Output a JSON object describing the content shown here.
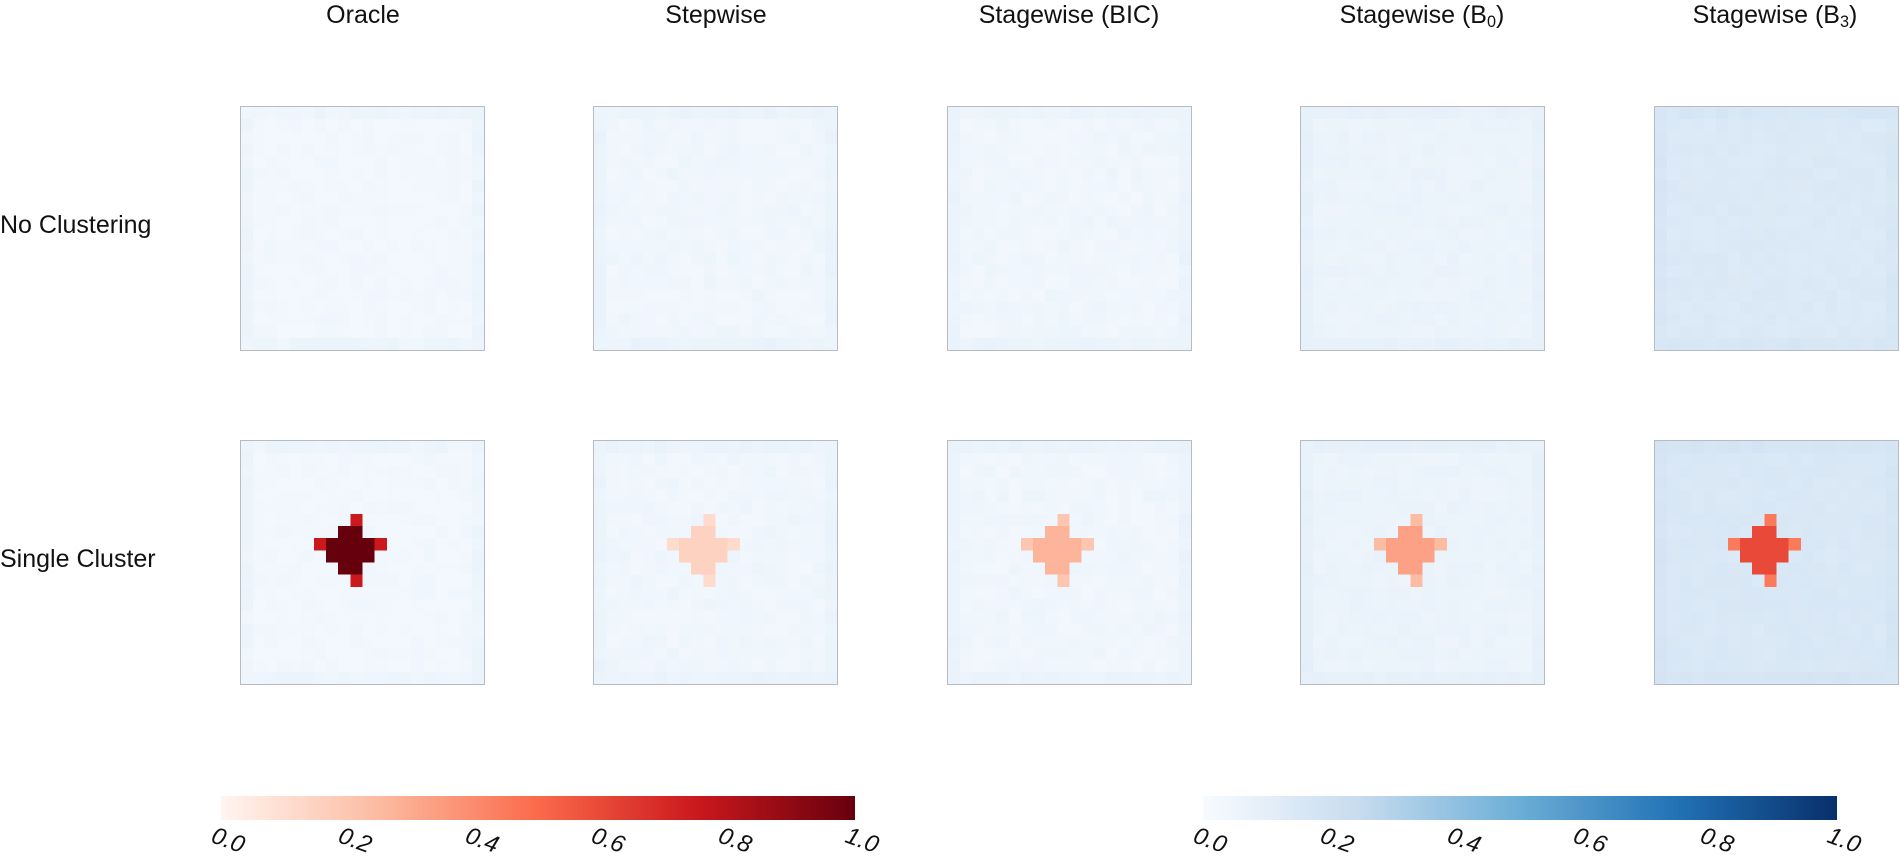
{
  "chart_data": {
    "type": "heatmap",
    "columns": [
      "Oracle",
      "Stepwise",
      "Stagewise (BIC)",
      "Stagewise (B0)",
      "Stagewise (B3)"
    ],
    "column_titles": [
      {
        "text": "Oracle",
        "sub": ""
      },
      {
        "text": "Stepwise",
        "sub": ""
      },
      {
        "text": "Stagewise (BIC)",
        "sub": ""
      },
      {
        "text": "Stagewise (B",
        "sub": "0",
        "suffix": ")"
      },
      {
        "text": "Stagewise (B",
        "sub": "3",
        "suffix": ")"
      }
    ],
    "rows": [
      "No Clustering",
      "Single Cluster"
    ],
    "grid_size": 20,
    "cluster_shape": "plus-shaped block of cells centered in grid",
    "panels": [
      {
        "row": "No Clustering",
        "column": "Oracle",
        "cluster_red": 0.0,
        "background_blue": 0.03
      },
      {
        "row": "No Clustering",
        "column": "Stepwise",
        "cluster_red": 0.0,
        "background_blue": 0.04
      },
      {
        "row": "No Clustering",
        "column": "Stagewise (BIC)",
        "cluster_red": 0.0,
        "background_blue": 0.04
      },
      {
        "row": "No Clustering",
        "column": "Stagewise (B0)",
        "cluster_red": 0.0,
        "background_blue": 0.06
      },
      {
        "row": "No Clustering",
        "column": "Stagewise (B3)",
        "cluster_red": 0.0,
        "background_blue": 0.14
      },
      {
        "row": "Single Cluster",
        "column": "Oracle",
        "cluster_red": 1.0,
        "background_blue": 0.03
      },
      {
        "row": "Single Cluster",
        "column": "Stepwise",
        "cluster_red": 0.15,
        "background_blue": 0.04
      },
      {
        "row": "Single Cluster",
        "column": "Stagewise (BIC)",
        "cluster_red": 0.27,
        "background_blue": 0.04
      },
      {
        "row": "Single Cluster",
        "column": "Stagewise (B0)",
        "cluster_red": 0.33,
        "background_blue": 0.06
      },
      {
        "row": "Single Cluster",
        "column": "Stagewise (B3)",
        "cluster_red": 0.6,
        "background_blue": 0.15
      }
    ],
    "colorbars": [
      {
        "name": "red scale",
        "colors": [
          "#fff5f0",
          "#fcbba1",
          "#fb6a4a",
          "#cb181d",
          "#67000d"
        ],
        "ticks": [
          "0.0",
          "0.2",
          "0.4",
          "0.6",
          "0.8",
          "1.0"
        ],
        "range": [
          0,
          1
        ]
      },
      {
        "name": "blue scale",
        "colors": [
          "#f7fbff",
          "#c6dbef",
          "#6baed6",
          "#2171b5",
          "#08306b"
        ],
        "ticks": [
          "0.0",
          "0.2",
          "0.4",
          "0.6",
          "0.8",
          "1.0"
        ],
        "range": [
          0,
          1
        ]
      }
    ]
  }
}
